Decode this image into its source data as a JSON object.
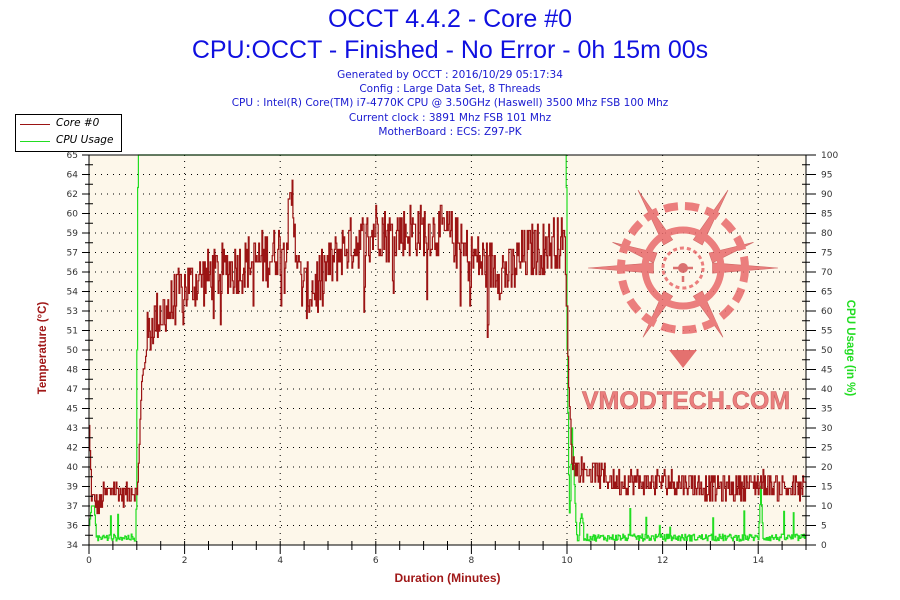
{
  "header": {
    "title": "OCCT 4.4.2 - Core #0",
    "subtitle": "CPU:OCCT - Finished - No Error - 0h 15m 00s",
    "info_lines": [
      "Generated by OCCT : 2016/10/29 05:17:34",
      "Config : Large Data Set, 8 Threads",
      "CPU : Intel(R) Core(TM) i7-4770K CPU @ 3.50GHz (Haswell) 3500 Mhz FSB 100 Mhz",
      "Current clock : 3891 Mhz FSB 101 Mhz",
      "MotherBoard : ECS: Z97-PK"
    ]
  },
  "legend": {
    "items": [
      {
        "label": "Core #0",
        "color": "#9b1414"
      },
      {
        "label": "CPU Usage",
        "color": "#22dd22"
      }
    ]
  },
  "watermark": {
    "text": "VMODTECH.COM",
    "color": "#e86a6a"
  },
  "colors": {
    "plot_bg": "#fdf7ea",
    "temp_line": "#9b1414",
    "usage_line": "#22dd22",
    "title": "#1010e0",
    "axis_title_left": "#a01818",
    "axis_title_right": "#22dd22"
  },
  "chart_data": {
    "type": "line",
    "title": "OCCT 4.4.2 - Core #0",
    "subtitle": "CPU:OCCT - Finished - No Error - 0h 15m 00s",
    "xlabel": "Duration (Minutes)",
    "ylabel": "Temperature (°C)",
    "ylabel_right": "CPU Usage (in %)",
    "xlim": [
      0,
      15
    ],
    "ylim": [
      34,
      65
    ],
    "ylim_right": [
      0,
      100
    ],
    "x_ticks": [
      0,
      2,
      4,
      6,
      8,
      10,
      12,
      14
    ],
    "y_ticks_left": [
      34,
      36,
      37,
      39,
      40,
      42,
      43,
      45,
      47,
      48,
      50,
      51,
      53,
      54,
      56,
      57,
      59,
      60,
      62,
      64,
      65
    ],
    "y_ticks_right": [
      0,
      5,
      10,
      15,
      20,
      25,
      30,
      35,
      40,
      45,
      50,
      55,
      60,
      65,
      70,
      75,
      80,
      85,
      90,
      95,
      100
    ],
    "grid": true,
    "legend_position": "top-left, outside plot",
    "series": [
      {
        "name": "Core #0",
        "axis": "left",
        "unit": "°C",
        "x": [
          0,
          0.05,
          0.1,
          0.2,
          0.3,
          0.5,
          0.7,
          0.9,
          1.0,
          1.05,
          1.1,
          1.2,
          1.35,
          1.5,
          1.7,
          2.0,
          2.3,
          2.6,
          3.0,
          3.4,
          3.8,
          4.1,
          4.25,
          4.4,
          4.6,
          4.8,
          5.0,
          5.3,
          5.6,
          5.9,
          6.0,
          6.3,
          6.6,
          7.0,
          7.3,
          7.6,
          7.9,
          8.2,
          8.5,
          8.8,
          9.1,
          9.4,
          9.7,
          9.95,
          10.0,
          10.05,
          10.1,
          10.2,
          10.4,
          10.7,
          11.0,
          11.5,
          12.0,
          12.5,
          13.0,
          13.5,
          14.0,
          14.5,
          15.0
        ],
        "values": [
          43,
          38,
          37.5,
          37,
          38,
          38.5,
          38,
          38.5,
          38,
          42,
          47,
          50,
          52,
          52.5,
          53,
          54.5,
          55,
          55.5,
          56,
          56.5,
          57,
          58,
          61.5,
          55,
          54,
          55,
          56,
          57.5,
          58,
          58.5,
          59.5,
          58.5,
          59,
          59,
          59,
          58.5,
          57,
          56.5,
          56,
          55.5,
          57,
          57.5,
          58,
          58,
          52,
          45,
          41,
          40,
          40,
          39.5,
          39,
          39,
          39,
          39,
          38.5,
          38.5,
          39,
          38.5,
          38.5
        ]
      },
      {
        "name": "CPU Usage",
        "axis": "right",
        "unit": "%",
        "x": [
          0,
          0.05,
          0.1,
          0.15,
          0.2,
          0.5,
          0.98,
          1.0,
          1.02,
          5.0,
          9.98,
          10.0,
          10.05,
          10.1,
          10.2,
          10.3,
          10.4,
          11.0,
          12.0,
          13.0,
          14.0,
          14.05,
          14.1,
          14.5,
          15.0
        ],
        "values": [
          5,
          10,
          10,
          3,
          1,
          1.5,
          1,
          50,
          100,
          100,
          100,
          50,
          2,
          30,
          1,
          8,
          1,
          1,
          1.5,
          1.5,
          1,
          15,
          1,
          1,
          1
        ]
      }
    ]
  }
}
